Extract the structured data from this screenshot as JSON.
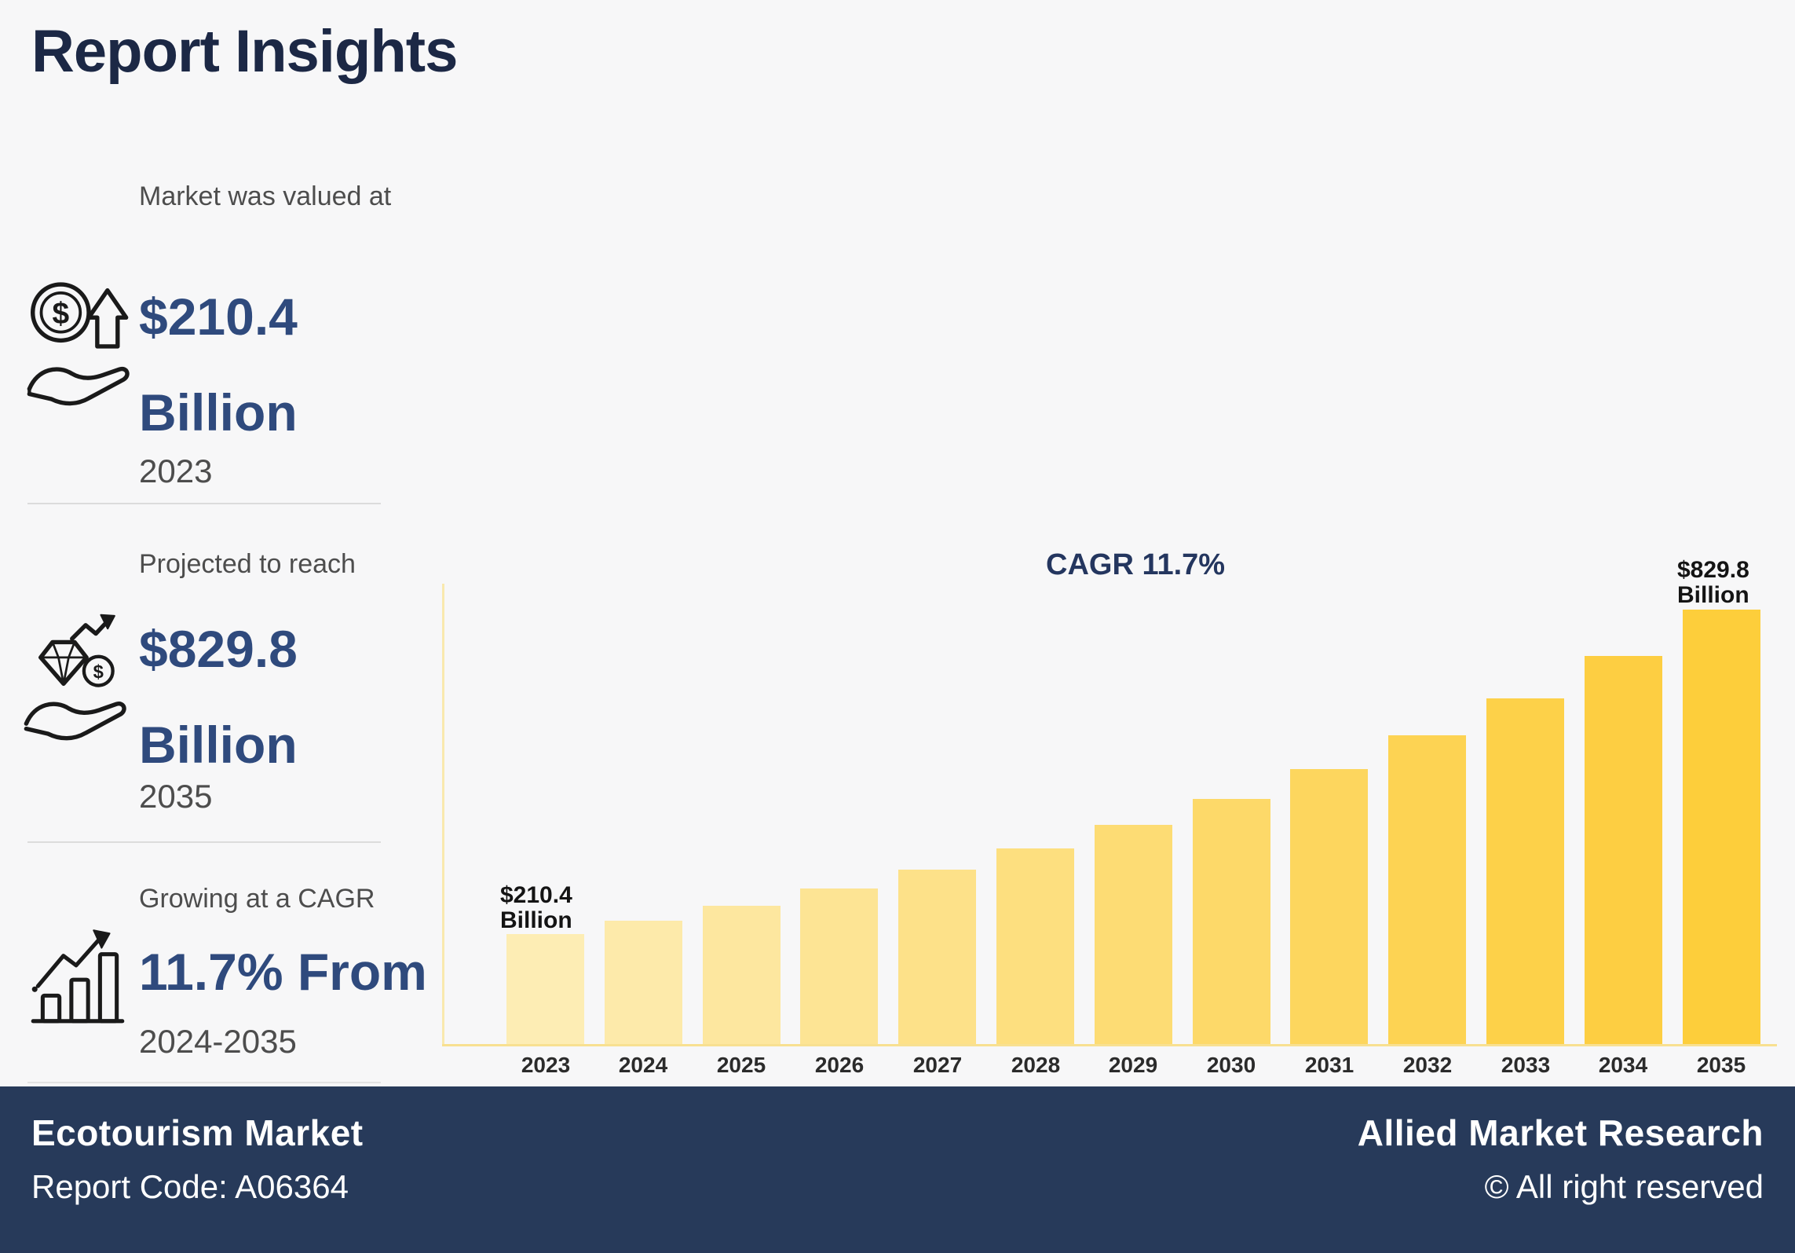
{
  "page": {
    "title": "Report Insights",
    "background_color": "#f7f7f8",
    "title_color": "#1c2845",
    "value_color": "#2f4a7d"
  },
  "stats": [
    {
      "label": "Market was valued at",
      "value": "$210.4 Billion",
      "period": "2023",
      "icon": "money-growth-hand-icon"
    },
    {
      "label": "Projected to reach",
      "value": "$829.8 Billion",
      "period": "2035",
      "icon": "diamond-coin-hand-icon"
    },
    {
      "label": "Growing at a CAGR",
      "value": "11.7% From",
      "period": "2024-2035",
      "icon": "growth-bars-arrow-icon"
    }
  ],
  "chart_data": {
    "type": "bar",
    "title": "CAGR 11.7%",
    "xlabel": "",
    "ylabel": "",
    "legend": "none",
    "grid": false,
    "ylim": [
      0,
      880
    ],
    "categories": [
      "2023",
      "2024",
      "2025",
      "2026",
      "2027",
      "2028",
      "2029",
      "2030",
      "2031",
      "2032",
      "2033",
      "2034",
      "2035"
    ],
    "values": [
      210.4,
      235.9,
      264.5,
      296.5,
      332.4,
      372.7,
      417.9,
      468.5,
      525.3,
      588.9,
      660.3,
      740.3,
      829.8
    ],
    "values_unit": "USD Billion",
    "values_note": "Only 2023 ($210.4 Billion) and 2035 ($829.8 Billion) are labeled on the chart; intermediate values estimated from bar heights / 11.7% CAGR",
    "bar_colors": [
      "#FDEDB4",
      "#FDEAAA",
      "#FDE79F",
      "#FDE494",
      "#FDE189",
      "#FDDF7F",
      "#FDDC74",
      "#FDD969",
      "#FDD65E",
      "#FDD353",
      "#FDD149",
      "#FDCE42",
      "#FDCE3B"
    ],
    "annotations": {
      "cagr_label": "CAGR 11.7%",
      "first_bar_label_line1": "$210.4",
      "first_bar_label_line2": "Billion",
      "last_bar_label_line1": "$829.8",
      "last_bar_label_line2": "Billion"
    },
    "axis_color": "#f8e091"
  },
  "footer": {
    "market_name": "Ecotourism Market",
    "report_code": "Report Code: A06364",
    "brand": "Allied Market Research",
    "copyright": "© All right reserved",
    "background_color": "#273a5a"
  }
}
